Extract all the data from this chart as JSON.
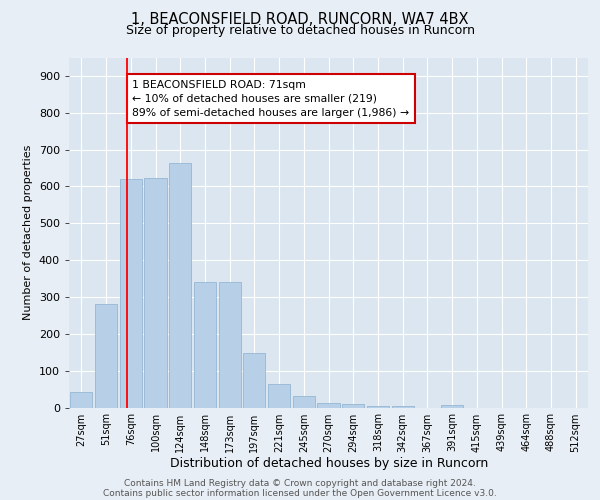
{
  "title1": "1, BEACONSFIELD ROAD, RUNCORN, WA7 4BX",
  "title2": "Size of property relative to detached houses in Runcorn",
  "xlabel": "Distribution of detached houses by size in Runcorn",
  "ylabel": "Number of detached properties",
  "categories": [
    "27sqm",
    "51sqm",
    "76sqm",
    "100sqm",
    "124sqm",
    "148sqm",
    "173sqm",
    "197sqm",
    "221sqm",
    "245sqm",
    "270sqm",
    "294sqm",
    "318sqm",
    "342sqm",
    "367sqm",
    "391sqm",
    "415sqm",
    "439sqm",
    "464sqm",
    "488sqm",
    "512sqm"
  ],
  "values": [
    42,
    280,
    620,
    622,
    665,
    340,
    342,
    148,
    65,
    30,
    12,
    10,
    5,
    3,
    0,
    8,
    0,
    0,
    0,
    0,
    0
  ],
  "bar_color": "#b8cfe8",
  "bar_edge_color": "#8ab0d0",
  "background_color": "#e8eef5",
  "plot_bg_color": "#dce6f0",
  "grid_color": "#ffffff",
  "red_line_x": 1.85,
  "annotation_text": "1 BEACONSFIELD ROAD: 71sqm\n← 10% of detached houses are smaller (219)\n89% of semi-detached houses are larger (1,986) →",
  "annotation_box_facecolor": "#ffffff",
  "annotation_box_edge": "#cc0000",
  "footer1": "Contains HM Land Registry data © Crown copyright and database right 2024.",
  "footer2": "Contains public sector information licensed under the Open Government Licence v3.0.",
  "ylim": [
    0,
    950
  ],
  "yticks": [
    0,
    100,
    200,
    300,
    400,
    500,
    600,
    700,
    800,
    900
  ],
  "title1_fontsize": 10.5,
  "title2_fontsize": 9,
  "ylabel_fontsize": 8,
  "xlabel_fontsize": 9,
  "tick_fontsize": 8,
  "xtick_fontsize": 7,
  "footer_fontsize": 6.5,
  "annot_fontsize": 7.8
}
